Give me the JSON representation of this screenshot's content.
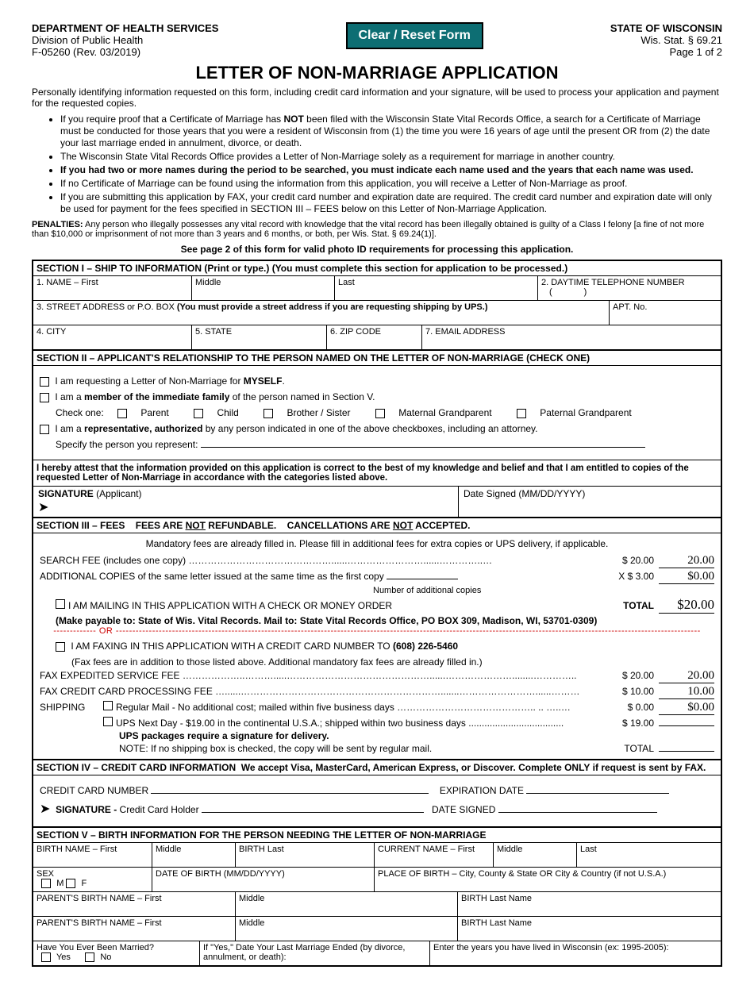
{
  "header": {
    "dept": "DEPARTMENT OF HEALTH SERVICES",
    "division": "Division of Public Health",
    "form_no": "F-05260 (Rev. 03/2019)",
    "state": "STATE OF WISCONSIN",
    "statute": "Wis. Stat. § 69.21",
    "page": "Page 1 of 2",
    "reset_btn": "Clear / Reset Form"
  },
  "title": "LETTER OF NON-MARRIAGE APPLICATION",
  "intro": "Personally identifying information requested on this form, including credit card information and your signature, will be used to process your application and payment for the requested copies.",
  "bullets": [
    "If you require proof that a Certificate of Marriage has NOT been filed with the Wisconsin State Vital Records Office, a search for a Certificate of Marriage must be conducted for those years that you were a resident of Wisconsin from (1) the time you were 16 years of age until the present OR from (2) the date your last marriage ended in annulment, divorce, or death.",
    "The Wisconsin State Vital Records Office provides a Letter of Non-Marriage solely as a requirement for marriage in another country.",
    "If you had two or more names during the period to be searched, you must indicate each name used and the years that each name was used.",
    "If no Certificate of Marriage can be found using the information from this application, you will receive a Letter of Non-Marriage as proof.",
    "If you are submitting this application by FAX, your credit card number and expiration date are required. The credit card number and expiration date will only be used for payment for the fees specified in  SECTION  III – FEES  below on this Letter of Non-Marriage Application."
  ],
  "penalties_label": "PENALTIES:",
  "penalties_text": "Any person who illegally possesses any vital record with knowledge that the vital record has been illegally obtained is guilty of a Class I felony [a fine of not more than $10,000 or imprisonment of not more than 3 years and 6 months, or both, per Wis. Stat. § 69.24(1)].",
  "see_page2": "See page 2 of this form for valid photo ID requirements for processing this application.",
  "sec1": {
    "header": "SECTION I – SHIP TO INFORMATION (Print or type.)   (You must complete this section for application to be processed.)",
    "f1": "1. NAME – First",
    "f2": "Middle",
    "f3": "Last",
    "f4": "2. DAYTIME TELEPHONE NUMBER",
    "paren_l": "(",
    "paren_r": ")",
    "f5": "3. STREET ADDRESS or P.O. BOX ",
    "f5b": "(You must provide a street address if you are requesting shipping by UPS.)",
    "f6": "APT. No.",
    "f7": "4. CITY",
    "f8": "5. STATE",
    "f9": "6. ZIP CODE",
    "f10": "7.  EMAIL ADDRESS"
  },
  "sec2": {
    "header": "SECTION II – APPLICANT'S RELATIONSHIP TO THE PERSON NAMED ON THE LETTER OF NON-MARRIAGE  (CHECK ONE)",
    "opt1a": "I am requesting a Letter of Non-Marriage for ",
    "opt1b": "MYSELF",
    "opt2a": "I am a ",
    "opt2b": "member of the immediate family",
    "opt2c": " of the person named in Section V.",
    "check_one": "Check one:",
    "rel": [
      "Parent",
      "Child",
      "Brother / Sister",
      "Maternal Grandparent",
      "Paternal Grandparent"
    ],
    "opt3a": "I am a ",
    "opt3b": "representative, authorized",
    "opt3c": " by any person indicated in one of the above checkboxes, including an attorney.",
    "specify": "Specify the person you represent:",
    "attest": "I hereby attest that the information provided on this application is correct to the best of my knowledge and belief and that I am entitled to copies of the requested Letter of Non-Marriage in accordance with the categories listed above.",
    "sig_label": "SIGNATURE",
    "sig_sub": " (Applicant)",
    "date_label": "Date Signed (MM/DD/YYYY)"
  },
  "sec3": {
    "header": "SECTION III – FEES    FEES ARE NOT REFUNDABLE.    CANCELLATIONS ARE NOT ACCEPTED.",
    "mandatory": "Mandatory fees are already filled in.  Please fill in additional fees for extra copies or UPS delivery, if applicable.",
    "search_label": "SEARCH FEE  (includes one copy)  ………………………………………......……………………......…………..…",
    "search_amt": "$ 20.00",
    "search_val": "20.00",
    "addl_label": "ADDITIONAL COPIES of the same letter issued at the same time as the first copy",
    "addl_sub": "Number of  additional copies",
    "addl_amt": "X   $   3.00",
    "addl_val": "$0.00",
    "mail_chk": "I AM MAILING IN THIS APPLICATION WITH A CHECK OR MONEY ORDER",
    "total_lbl": "TOTAL",
    "total_val": "$20.00",
    "mail_note": "(Make payable to:  State of Wis. Vital Records.   Mail to:  State Vital Records Office, PO BOX 309, Madison, WI, 53701-0309)",
    "or": "------------- OR ---------------------------------------------------------------------------------------------------------------------------------------------------------------------------------",
    "fax_chk": "I AM FAXING IN THIS APPLICATION WITH A CREDIT CARD NUMBER TO ",
    "fax_num": "(608) 226-5460",
    "fax_sub": "(Fax fees are in addition to those listed above. Additional mandatory fax fees are already filled in.)",
    "fax_exp_lbl": "FAX EXPEDITED SERVICE FEE ………………..……….....………………………………………......…………………........…………..",
    "fax_exp_amt": "$  20.00",
    "fax_exp_val": "20.00",
    "fax_cc_lbl": "FAX CREDIT CARD PROCESSING FEE  …......……………………………………………………….......……………………......………",
    "fax_cc_amt": "$  10.00",
    "fax_cc_val": "10.00",
    "ship_lbl": "SHIPPING",
    "ship_reg": "Regular Mail - No additional cost; mailed within five business days  …………………………………….. .. …..…",
    "ship_reg_amt": "$   0.00",
    "ship_reg_val": "$0.00",
    "ship_ups": "UPS Next Day - $19.00 in the continental U.S.A.; shipped within two business days  ....................................",
    "ship_ups_amt": "$  19.00",
    "ups_note": "UPS packages require a signature for delivery.",
    "ship_note": "NOTE:  If no shipping box is checked, the copy will be sent by regular mail.",
    "total2_lbl": "TOTAL"
  },
  "sec4": {
    "header": "SECTION IV – CREDIT CARD INFORMATION   We accept Visa, MasterCard, American Express, or Discover. Complete ONLY if request is sent by FAX.",
    "cc_lbl": "CREDIT CARD NUMBER",
    "exp_lbl": "EXPIRATION DATE",
    "sig_lbl": "SIGNATURE - ",
    "sig_sub": "Credit Card Holder",
    "date_lbl": "DATE SIGNED"
  },
  "sec5": {
    "header": "SECTION V – BIRTH INFORMATION FOR THE PERSON NEEDING THE LETTER OF NON-MARRIAGE",
    "bn_first": "BIRTH NAME – First",
    "bn_mid": "Middle",
    "bn_last": "BIRTH Last",
    "cn_first": "CURRENT NAME – First",
    "cn_mid": "Middle",
    "cn_last": "Last",
    "sex": "SEX",
    "m": "M",
    "f": "F",
    "dob": "DATE OF BIRTH  (MM/DD/YYYY)",
    "pob": "PLACE OF BIRTH – City, County & State OR City & Country (if not U.S.A.)",
    "p1": "PARENT'S BIRTH NAME – First",
    "p_mid": "Middle",
    "p_last": "BIRTH Last Name",
    "married_q": "Have You Ever Been Married?",
    "yes": "Yes",
    "no": "No",
    "married_date": "If \"Yes,\" Date Your Last Marriage Ended  (by divorce, annulment, or death):",
    "years_wi": "Enter the years you have lived in Wisconsin (ex: 1995-2005):"
  }
}
